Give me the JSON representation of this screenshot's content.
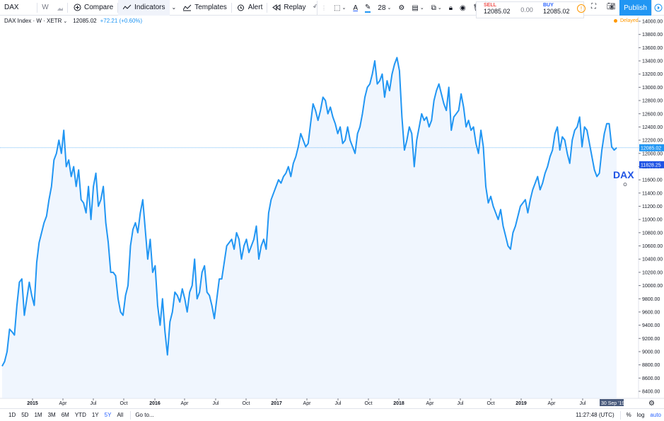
{
  "toolbar": {
    "symbol": "DAX",
    "interval": "W",
    "compare": "Compare",
    "indicators": "Indicators",
    "templates": "Templates",
    "alert": "Alert",
    "replay": "Replay"
  },
  "draw_bar": {
    "line_width": "28"
  },
  "trade": {
    "sell_label": "SELL",
    "sell_price": "12085.02",
    "spread": "0.00",
    "buy_label": "BUY",
    "buy_price": "12085.02"
  },
  "publish": "Publish",
  "legend": {
    "name": "DAX Index · W · XETR",
    "value": "12085.02",
    "change": "+72.21 (+0.60%)"
  },
  "status": {
    "delayed": "Delayed"
  },
  "chart_data": {
    "type": "area",
    "symbol_label": "DAX",
    "last_price_label": "12085.02",
    "prev_price_label": "11828.25",
    "date_label": "30 Sep '19",
    "ylim": [
      8400,
      14000
    ],
    "y_ticks": [
      8400,
      8600,
      8800,
      9000,
      9200,
      9400,
      9600,
      9800,
      10000,
      10200,
      10400,
      10600,
      10800,
      11000,
      11200,
      11400,
      11600,
      11800,
      12000,
      12200,
      12400,
      12600,
      12800,
      13000,
      13200,
      13400,
      13600,
      13800,
      14000
    ],
    "x_tick_labels": [
      "2015",
      "Apr",
      "Jul",
      "Oct",
      "2016",
      "Apr",
      "Jul",
      "Oct",
      "2017",
      "Apr",
      "Jul",
      "Oct",
      "2018",
      "Apr",
      "Jul",
      "Oct",
      "2019",
      "Apr",
      "Jul"
    ],
    "values": [
      8780,
      8850,
      9000,
      9340,
      9300,
      9250,
      9700,
      10050,
      10100,
      9550,
      9800,
      10050,
      9850,
      9700,
      10350,
      10650,
      10800,
      10950,
      11050,
      11300,
      11500,
      11900,
      12000,
      12200,
      12000,
      12350,
      11800,
      11900,
      11650,
      11800,
      11500,
      11750,
      11300,
      11250,
      11100,
      11500,
      11000,
      11500,
      11700,
      11200,
      11300,
      11500,
      10950,
      10650,
      10200,
      10200,
      10150,
      9800,
      9600,
      9550,
      9850,
      10000,
      10600,
      10850,
      10950,
      10800,
      11100,
      11300,
      10850,
      10400,
      10700,
      10200,
      10300,
      9700,
      9400,
      9800,
      9300,
      8950,
      9450,
      9600,
      9900,
      9850,
      9750,
      9950,
      9800,
      9600,
      9900,
      10000,
      10400,
      9800,
      9900,
      10200,
      10300,
      9900,
      9850,
      9700,
      9500,
      9800,
      10100,
      10100,
      10350,
      10600,
      10650,
      10700,
      10550,
      10800,
      10700,
      10400,
      10600,
      10700,
      10500,
      10600,
      10700,
      10900,
      10400,
      10600,
      10700,
      10550,
      11100,
      11300,
      11400,
      11500,
      11600,
      11550,
      11650,
      11700,
      11800,
      11650,
      11850,
      11950,
      12100,
      12300,
      12200,
      12100,
      12150,
      12450,
      12750,
      12650,
      12500,
      12650,
      12850,
      12800,
      12600,
      12700,
      12550,
      12450,
      12300,
      12400,
      12150,
      12200,
      12400,
      12200,
      12100,
      12000,
      12300,
      12400,
      12600,
      12850,
      13000,
      13050,
      13200,
      13400,
      13050,
      13100,
      13200,
      12850,
      13100,
      12950,
      13200,
      13350,
      13450,
      13250,
      12550,
      12050,
      12200,
      12400,
      12300,
      11800,
      12200,
      12400,
      12600,
      12500,
      12550,
      12400,
      12500,
      12800,
      12950,
      13050,
      12900,
      12750,
      12650,
      13000,
      12350,
      12550,
      12600,
      12650,
      12900,
      12700,
      12400,
      12500,
      12350,
      12400,
      12150,
      12000,
      12350,
      12100,
      11500,
      11250,
      11350,
      11200,
      11100,
      11000,
      11150,
      10900,
      10750,
      10600,
      10550,
      10800,
      10900,
      11050,
      11200,
      11250,
      11300,
      11100,
      11300,
      11450,
      11550,
      11650,
      11450,
      11550,
      11700,
      11800,
      11950,
      12050,
      12300,
      12400,
      12050,
      12250,
      12200,
      12000,
      11850,
      12200,
      12350,
      12400,
      12550,
      12100,
      12400,
      12350,
      12150,
      11950,
      11750,
      11650,
      11700,
      12050,
      12300,
      12450,
      12450,
      12100,
      12050,
      12085
    ]
  },
  "bottom": {
    "ranges": [
      "1D",
      "5D",
      "1M",
      "3M",
      "6M",
      "YTD",
      "1Y",
      "5Y",
      "All"
    ],
    "active_range": "5Y",
    "goto": "Go to...",
    "time": "11:27:48 (UTC)",
    "pct": "%",
    "log": "log",
    "auto": "auto"
  }
}
